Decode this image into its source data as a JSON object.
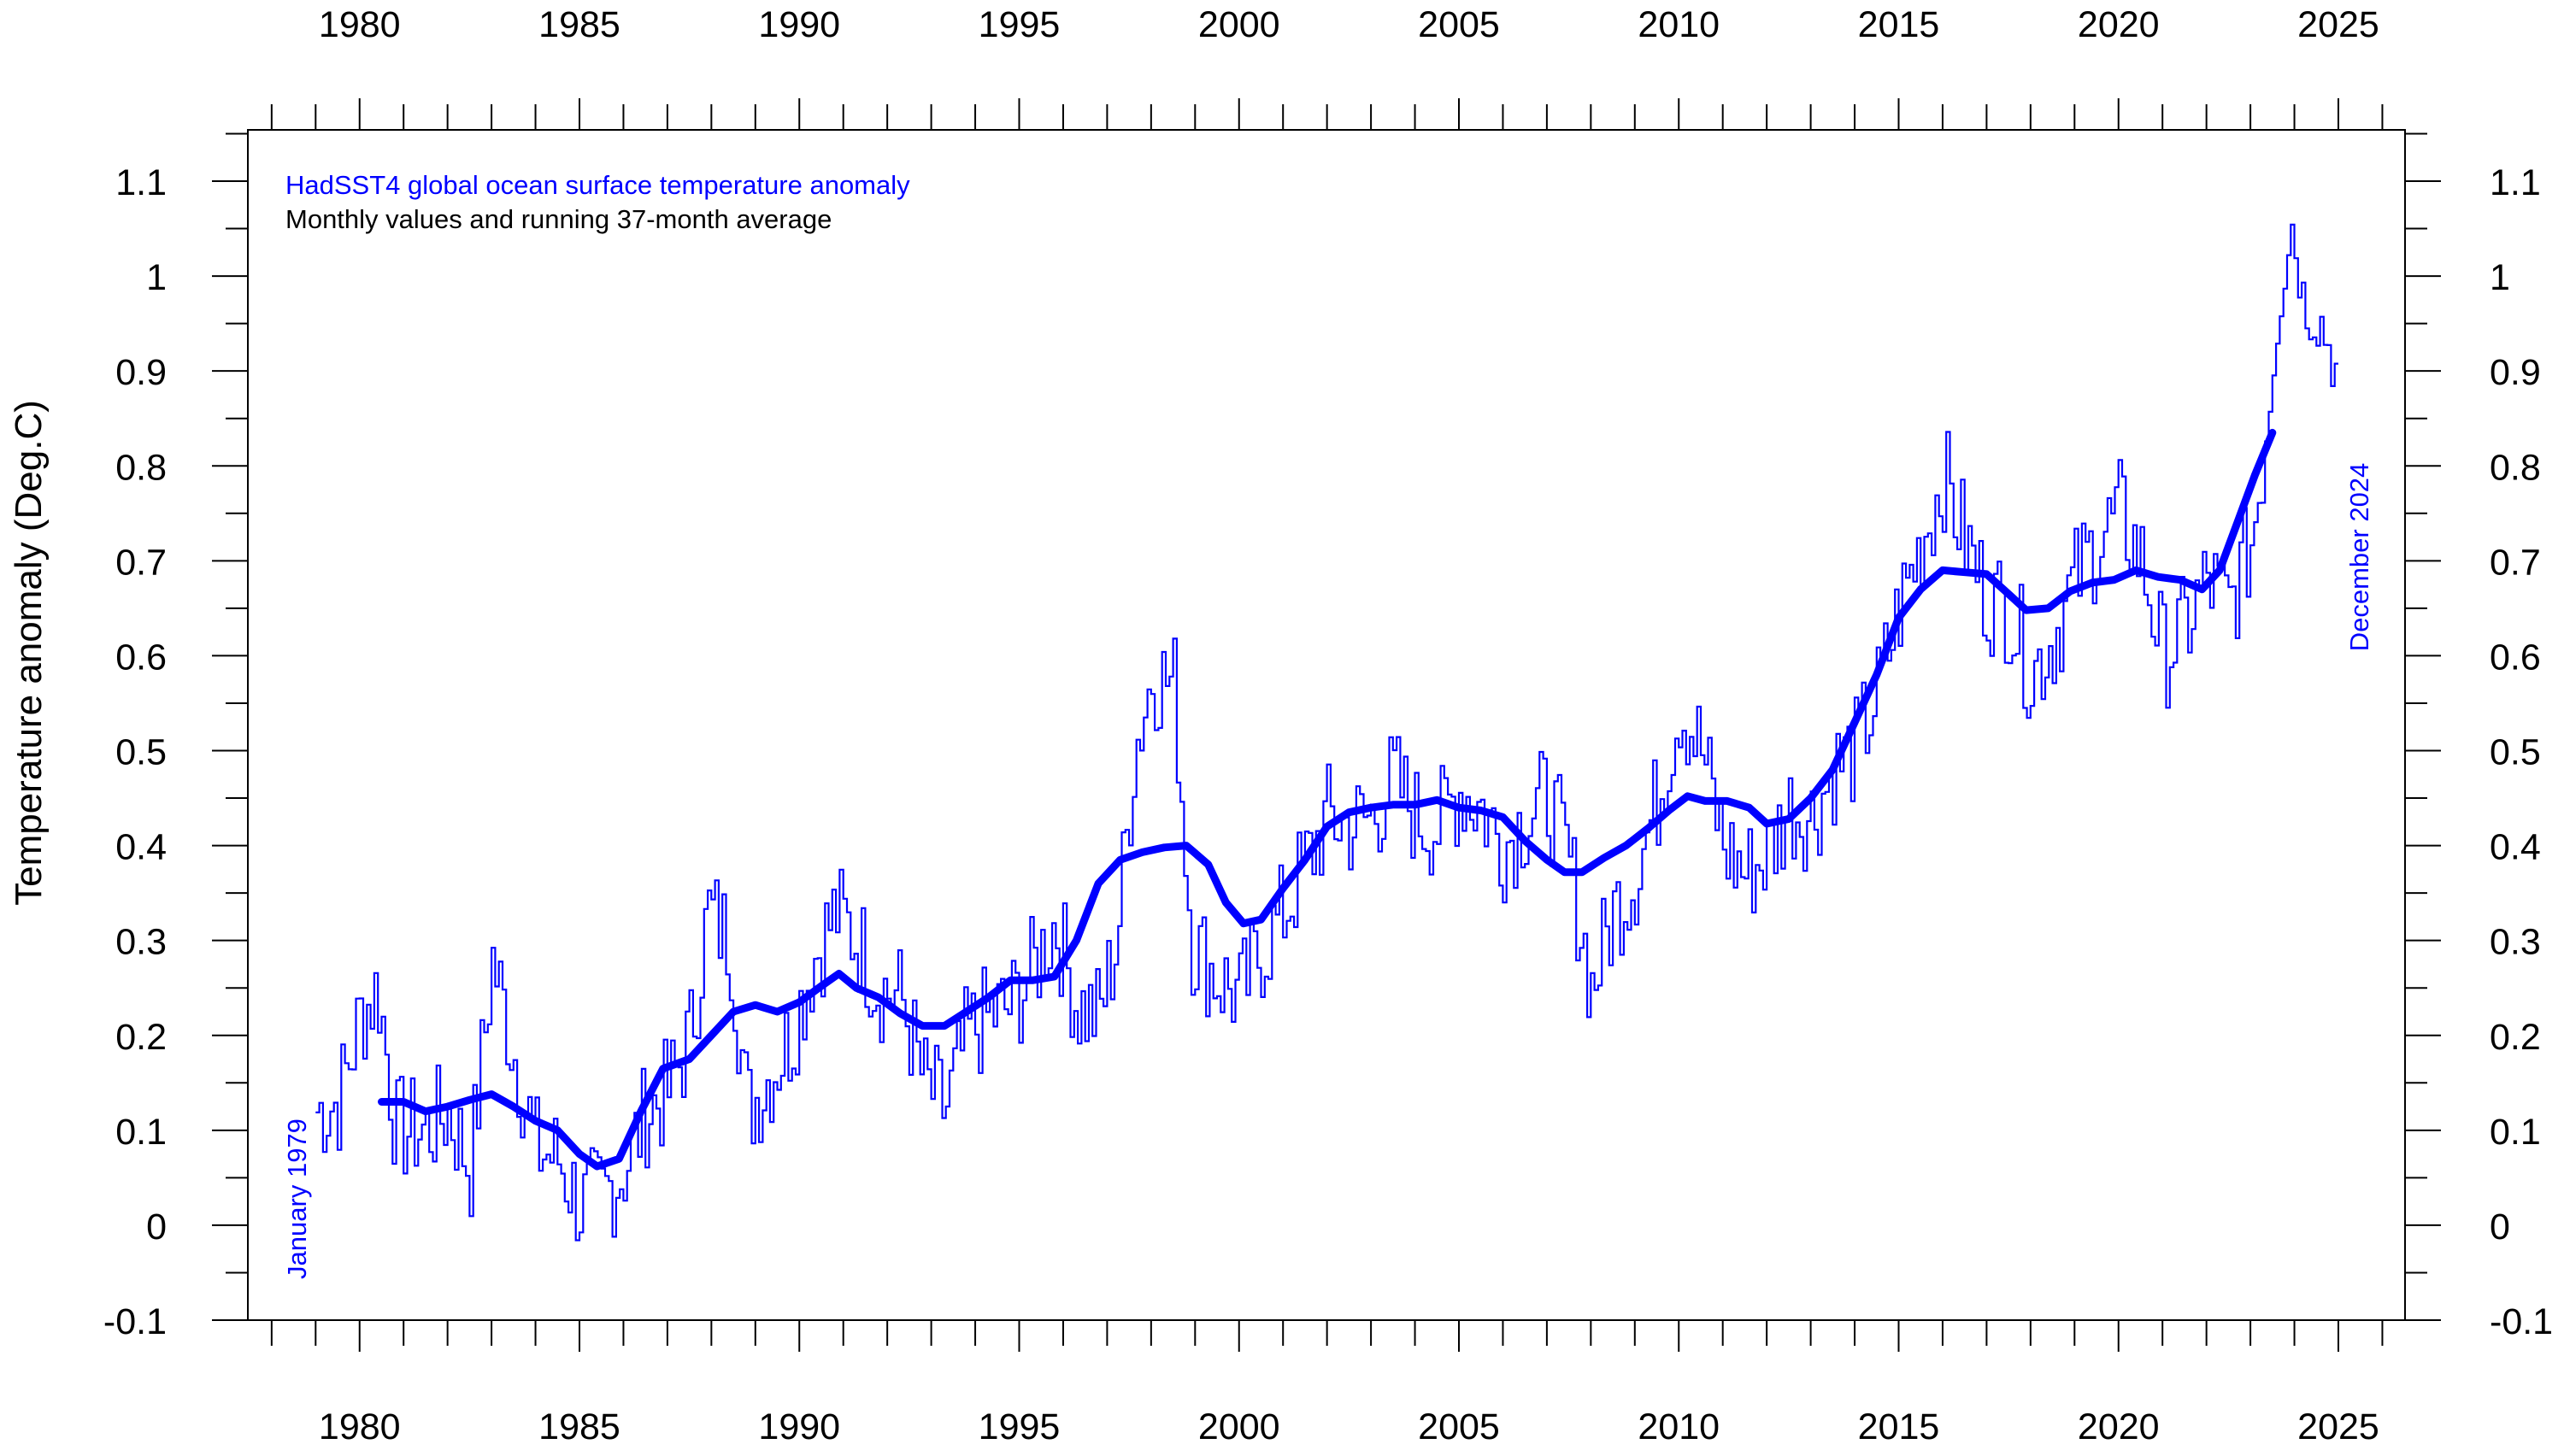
{
  "chart_data": {
    "type": "line",
    "title": "HadSST4 global ocean surface temperature anomaly",
    "subtitle": "Monthly values and running 37-month average",
    "ylabel": "Temperature anomaly (Deg.C)",
    "xlabel": "",
    "xlim": [
      1977.4,
      2026.2
    ],
    "ylim": [
      -0.1,
      1.15
    ],
    "x_ticks": [
      1980,
      1985,
      1990,
      1995,
      2000,
      2005,
      2010,
      2015,
      2020,
      2025
    ],
    "x_tick_labels": [
      "1980",
      "1985",
      "1990",
      "1995",
      "2000",
      "2005",
      "2010",
      "2015",
      "2020",
      "2025"
    ],
    "y_ticks": [
      -0.1,
      0,
      0.1,
      0.2,
      0.3,
      0.4,
      0.5,
      0.6,
      0.7,
      0.8,
      0.9,
      1.0,
      1.1
    ],
    "y_tick_labels": [
      "-0.1",
      "0",
      "0.1",
      "0.2",
      "0.3",
      "0.4",
      "0.5",
      "0.6",
      "0.7",
      "0.8",
      "0.9",
      "1",
      "1.1"
    ],
    "grid": false,
    "annotations": [
      {
        "text": "January 1979",
        "x": 1979.1,
        "y": 0.1,
        "rotation": -90
      },
      {
        "text": "December 2024",
        "x": 2025.4,
        "y": 0.7,
        "rotation": -90
      }
    ],
    "colors": {
      "series": "#0000ff",
      "axis": "#000000",
      "title": "#0000ff",
      "subtitle": "#000000"
    },
    "series": [
      {
        "name": "Monthly values",
        "style": "step",
        "anchors": [
          [
            1979.0,
            0.12
          ],
          [
            1979.5,
            0.13
          ],
          [
            1980.0,
            0.22
          ],
          [
            1980.4,
            0.25
          ],
          [
            1980.8,
            0.1
          ],
          [
            1981.5,
            0.1
          ],
          [
            1982.0,
            0.12
          ],
          [
            1982.5,
            0.06
          ],
          [
            1983.0,
            0.28
          ],
          [
            1983.5,
            0.18
          ],
          [
            1984.0,
            0.08
          ],
          [
            1984.5,
            0.07
          ],
          [
            1985.0,
            0.02
          ],
          [
            1985.5,
            0.03
          ],
          [
            1986.0,
            0.06
          ],
          [
            1986.5,
            0.12
          ],
          [
            1987.0,
            0.14
          ],
          [
            1987.5,
            0.2
          ],
          [
            1987.9,
            0.33
          ],
          [
            1988.4,
            0.3
          ],
          [
            1988.8,
            0.12
          ],
          [
            1989.2,
            0.15
          ],
          [
            1989.8,
            0.2
          ],
          [
            1990.3,
            0.28
          ],
          [
            1990.8,
            0.33
          ],
          [
            1991.3,
            0.3
          ],
          [
            1991.8,
            0.25
          ],
          [
            1992.3,
            0.24
          ],
          [
            1992.8,
            0.15
          ],
          [
            1993.3,
            0.12
          ],
          [
            1993.8,
            0.2
          ],
          [
            1994.3,
            0.22
          ],
          [
            1994.8,
            0.23
          ],
          [
            1995.3,
            0.27
          ],
          [
            1995.8,
            0.32
          ],
          [
            1996.3,
            0.23
          ],
          [
            1996.8,
            0.22
          ],
          [
            1997.2,
            0.3
          ],
          [
            1997.6,
            0.5
          ],
          [
            1998.0,
            0.58
          ],
          [
            1998.5,
            0.57
          ],
          [
            1998.9,
            0.3
          ],
          [
            1999.5,
            0.26
          ],
          [
            2000.0,
            0.24
          ],
          [
            2000.5,
            0.29
          ],
          [
            2001.0,
            0.33
          ],
          [
            2001.5,
            0.38
          ],
          [
            2002.0,
            0.43
          ],
          [
            2002.5,
            0.42
          ],
          [
            2003.0,
            0.43
          ],
          [
            2003.5,
            0.47
          ],
          [
            2004.0,
            0.43
          ],
          [
            2004.5,
            0.42
          ],
          [
            2005.0,
            0.46
          ],
          [
            2005.5,
            0.44
          ],
          [
            2006.0,
            0.4
          ],
          [
            2006.5,
            0.43
          ],
          [
            2007.0,
            0.45
          ],
          [
            2007.5,
            0.38
          ],
          [
            2008.0,
            0.25
          ],
          [
            2008.5,
            0.33
          ],
          [
            2009.0,
            0.37
          ],
          [
            2009.5,
            0.45
          ],
          [
            2010.0,
            0.55
          ],
          [
            2010.5,
            0.5
          ],
          [
            2011.0,
            0.4
          ],
          [
            2011.5,
            0.37
          ],
          [
            2012.0,
            0.39
          ],
          [
            2012.5,
            0.44
          ],
          [
            2013.0,
            0.43
          ],
          [
            2013.5,
            0.48
          ],
          [
            2014.0,
            0.5
          ],
          [
            2014.5,
            0.56
          ],
          [
            2015.0,
            0.65
          ],
          [
            2015.5,
            0.72
          ],
          [
            2016.0,
            0.79
          ],
          [
            2016.5,
            0.72
          ],
          [
            2017.0,
            0.66
          ],
          [
            2017.5,
            0.65
          ],
          [
            2018.0,
            0.58
          ],
          [
            2018.5,
            0.62
          ],
          [
            2019.0,
            0.68
          ],
          [
            2019.5,
            0.72
          ],
          [
            2020.0,
            0.75
          ],
          [
            2020.5,
            0.7
          ],
          [
            2021.0,
            0.6
          ],
          [
            2021.5,
            0.63
          ],
          [
            2022.0,
            0.68
          ],
          [
            2022.5,
            0.65
          ],
          [
            2023.0,
            0.72
          ],
          [
            2023.3,
            0.82
          ],
          [
            2023.6,
            0.96
          ],
          [
            2023.9,
            1.06
          ],
          [
            2024.2,
            0.97
          ],
          [
            2024.6,
            0.95
          ],
          [
            2024.92,
            0.9
          ]
        ]
      },
      {
        "name": "Running 37-month average",
        "style": "line",
        "points": [
          [
            1980.5,
            0.13
          ],
          [
            1981.0,
            0.13
          ],
          [
            1981.5,
            0.12
          ],
          [
            1982.0,
            0.125
          ],
          [
            1982.5,
            0.132
          ],
          [
            1983.0,
            0.138
          ],
          [
            1983.5,
            0.125
          ],
          [
            1984.0,
            0.11
          ],
          [
            1984.5,
            0.1
          ],
          [
            1985.0,
            0.075
          ],
          [
            1985.4,
            0.062
          ],
          [
            1985.9,
            0.07
          ],
          [
            1986.4,
            0.12
          ],
          [
            1986.9,
            0.165
          ],
          [
            1987.5,
            0.175
          ],
          [
            1988.0,
            0.2
          ],
          [
            1988.5,
            0.225
          ],
          [
            1989.0,
            0.232
          ],
          [
            1989.5,
            0.225
          ],
          [
            1990.0,
            0.235
          ],
          [
            1990.5,
            0.252
          ],
          [
            1990.9,
            0.265
          ],
          [
            1991.3,
            0.25
          ],
          [
            1991.8,
            0.24
          ],
          [
            1992.3,
            0.223
          ],
          [
            1992.8,
            0.21
          ],
          [
            1993.3,
            0.21
          ],
          [
            1993.8,
            0.225
          ],
          [
            1994.3,
            0.24
          ],
          [
            1994.8,
            0.258
          ],
          [
            1995.3,
            0.258
          ],
          [
            1995.8,
            0.262
          ],
          [
            1996.3,
            0.3
          ],
          [
            1996.8,
            0.36
          ],
          [
            1997.3,
            0.385
          ],
          [
            1997.8,
            0.393
          ],
          [
            1998.3,
            0.398
          ],
          [
            1998.8,
            0.4
          ],
          [
            1999.3,
            0.38
          ],
          [
            1999.7,
            0.34
          ],
          [
            2000.1,
            0.318
          ],
          [
            2000.5,
            0.322
          ],
          [
            2001.0,
            0.355
          ],
          [
            2001.5,
            0.385
          ],
          [
            2002.0,
            0.42
          ],
          [
            2002.5,
            0.435
          ],
          [
            2003.0,
            0.44
          ],
          [
            2003.5,
            0.443
          ],
          [
            2004.0,
            0.443
          ],
          [
            2004.5,
            0.448
          ],
          [
            2005.0,
            0.44
          ],
          [
            2005.5,
            0.437
          ],
          [
            2006.0,
            0.43
          ],
          [
            2006.5,
            0.405
          ],
          [
            2007.0,
            0.385
          ],
          [
            2007.4,
            0.372
          ],
          [
            2007.8,
            0.372
          ],
          [
            2008.3,
            0.387
          ],
          [
            2008.8,
            0.4
          ],
          [
            2009.3,
            0.418
          ],
          [
            2009.8,
            0.438
          ],
          [
            2010.2,
            0.452
          ],
          [
            2010.6,
            0.447
          ],
          [
            2011.1,
            0.447
          ],
          [
            2011.6,
            0.44
          ],
          [
            2012.0,
            0.423
          ],
          [
            2012.5,
            0.428
          ],
          [
            2013.0,
            0.45
          ],
          [
            2013.5,
            0.48
          ],
          [
            2014.0,
            0.53
          ],
          [
            2014.5,
            0.58
          ],
          [
            2015.0,
            0.64
          ],
          [
            2015.5,
            0.67
          ],
          [
            2016.0,
            0.69
          ],
          [
            2016.5,
            0.688
          ],
          [
            2017.0,
            0.686
          ],
          [
            2017.5,
            0.665
          ],
          [
            2017.9,
            0.648
          ],
          [
            2018.4,
            0.65
          ],
          [
            2018.9,
            0.668
          ],
          [
            2019.4,
            0.677
          ],
          [
            2019.9,
            0.68
          ],
          [
            2020.4,
            0.69
          ],
          [
            2020.9,
            0.683
          ],
          [
            2021.4,
            0.68
          ],
          [
            2021.9,
            0.67
          ],
          [
            2022.3,
            0.69
          ],
          [
            2022.7,
            0.74
          ],
          [
            2023.1,
            0.79
          ],
          [
            2023.5,
            0.835
          ]
        ]
      }
    ]
  }
}
